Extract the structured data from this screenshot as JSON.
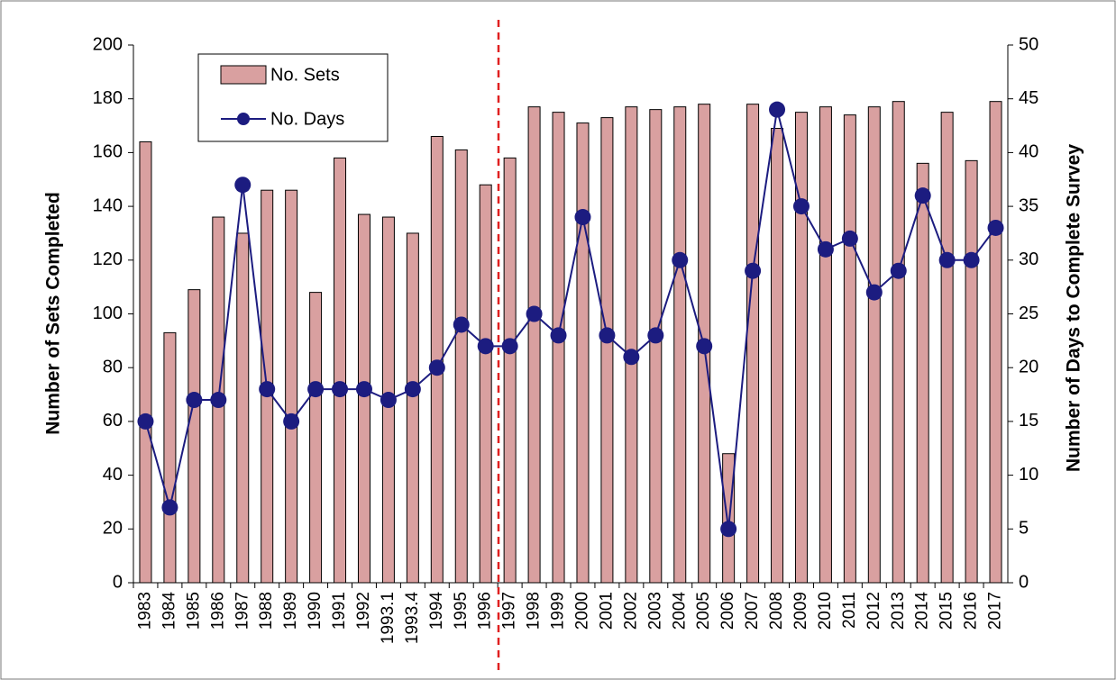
{
  "chart_data": {
    "type": "bar-line",
    "categories": [
      "1983",
      "1984",
      "1985",
      "1986",
      "1987",
      "1988",
      "1989",
      "1990",
      "1991",
      "1992",
      "1993.1",
      "1993.4",
      "1994",
      "1995",
      "1996",
      "1997",
      "1998",
      "1999",
      "2000",
      "2001",
      "2002",
      "2003",
      "2004",
      "2005",
      "2006",
      "2007",
      "2008",
      "2009",
      "2010",
      "2011",
      "2012",
      "2013",
      "2014",
      "2015",
      "2016",
      "2017"
    ],
    "series": [
      {
        "name": "No. Sets",
        "type": "bar",
        "color": "#d9a0a0",
        "values": [
          164,
          93,
          109,
          136,
          130,
          146,
          146,
          108,
          158,
          137,
          136,
          130,
          166,
          161,
          148,
          158,
          177,
          175,
          171,
          173,
          177,
          176,
          177,
          178,
          48,
          178,
          169,
          175,
          177,
          174,
          177,
          179,
          156,
          175,
          157,
          179
        ]
      },
      {
        "name": "No. Days",
        "type": "line",
        "axis": "y2",
        "color": "#1c1c80",
        "values": [
          15,
          7,
          17,
          17,
          37,
          18,
          15,
          18,
          18,
          18,
          17,
          18,
          20,
          24,
          22,
          22,
          25,
          23,
          34,
          23,
          21,
          23,
          30,
          22,
          5,
          29,
          44,
          35,
          31,
          32,
          27,
          29,
          36,
          30,
          30,
          33
        ]
      }
    ],
    "y_label": "Number of Sets Completed",
    "y2_label": "Number of Days to Complete Survey",
    "ylim": [
      0,
      200
    ],
    "yticks": [
      0,
      20,
      40,
      60,
      80,
      100,
      120,
      140,
      160,
      180,
      200
    ],
    "y2lim": [
      0,
      50
    ],
    "y2ticks": [
      0,
      5,
      10,
      15,
      20,
      25,
      30,
      35,
      40,
      45,
      50
    ],
    "legend": "upper left"
  }
}
